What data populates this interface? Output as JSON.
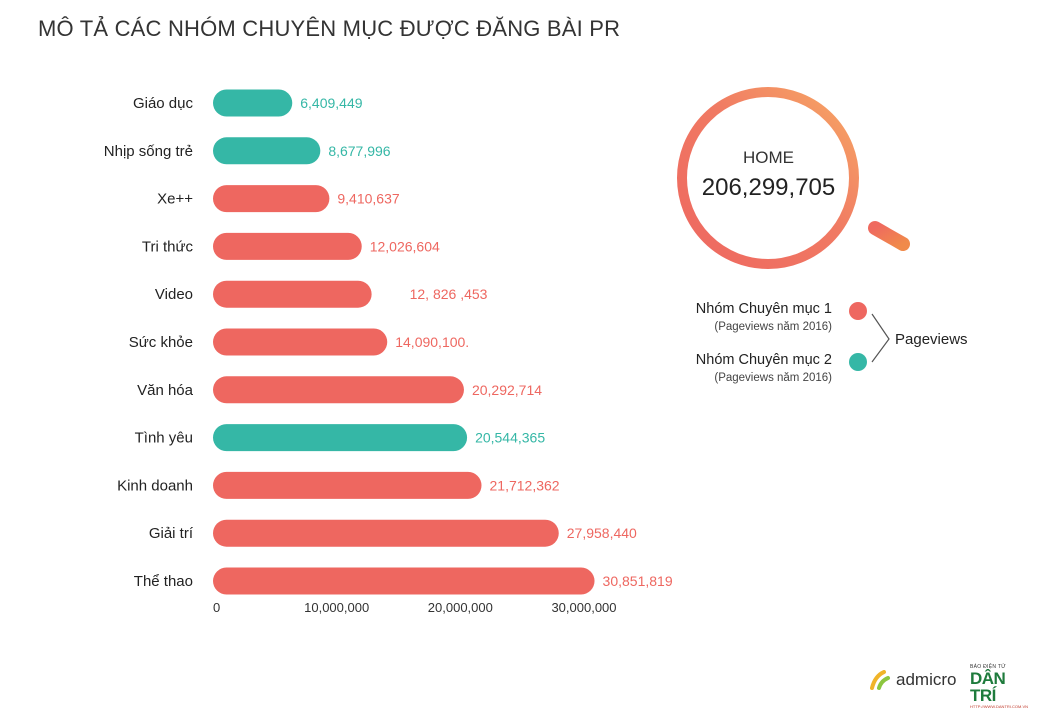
{
  "title": "MÔ TẢ CÁC NHÓM CHUYÊN MỤC ĐƯỢC ĐĂNG BÀI PR",
  "colors": {
    "group1": "#ee6760",
    "group2": "#35b7a6",
    "ring_start": "#ee6760",
    "ring_end": "#f6a062"
  },
  "chart_data": {
    "type": "bar",
    "orientation": "horizontal",
    "categories": [
      "Giáo  dục",
      "Nhịp sống trẻ",
      "Xe++",
      "Tri thức",
      "Video",
      "Sức khỏe",
      "Văn hóa",
      "Tình  yêu",
      "Kinh doanh",
      "Giải trí",
      "Thể thao"
    ],
    "values": [
      6409449,
      8677996,
      9410637,
      12026604,
      12826453,
      14090100,
      20292714,
      20544365,
      21712362,
      27958440,
      30851819
    ],
    "value_labels": [
      "6,409,449",
      "8,677,996",
      "9,410,637",
      "12,026,604",
      "12, 826 ,453",
      "14,090,100.",
      "20,292,714",
      "20,544,365",
      "21,712,362",
      "27,958,440",
      "30,851,819"
    ],
    "groups": [
      2,
      2,
      1,
      1,
      1,
      1,
      1,
      2,
      1,
      1,
      1
    ],
    "xticks": [
      0,
      10000000,
      20000000,
      30000000
    ],
    "xtick_labels": [
      "0",
      "10,000,000",
      "20,000,000",
      "30,000,000"
    ],
    "xlim": [
      0,
      32000000
    ],
    "grid": false,
    "legend": [
      {
        "name": "Nhóm Chuyên mục 1",
        "sub": "(Pageviews năm 2016)",
        "group": 1
      },
      {
        "name": "Nhóm Chuyên mục 2",
        "sub": "(Pageviews năm 2016)",
        "group": 2
      }
    ],
    "legend_group_label": "Pageviews",
    "legend_position": "right"
  },
  "home": {
    "label": "HOME",
    "value": "206,299,705"
  },
  "logos": {
    "admicro": "admicro",
    "dantri_small": "BÁO ĐIỆN TỬ",
    "dantri_big": "DÂN TRÍ",
    "dantri_url": "HTTP://WWW.DANTRI.COM.VN"
  }
}
